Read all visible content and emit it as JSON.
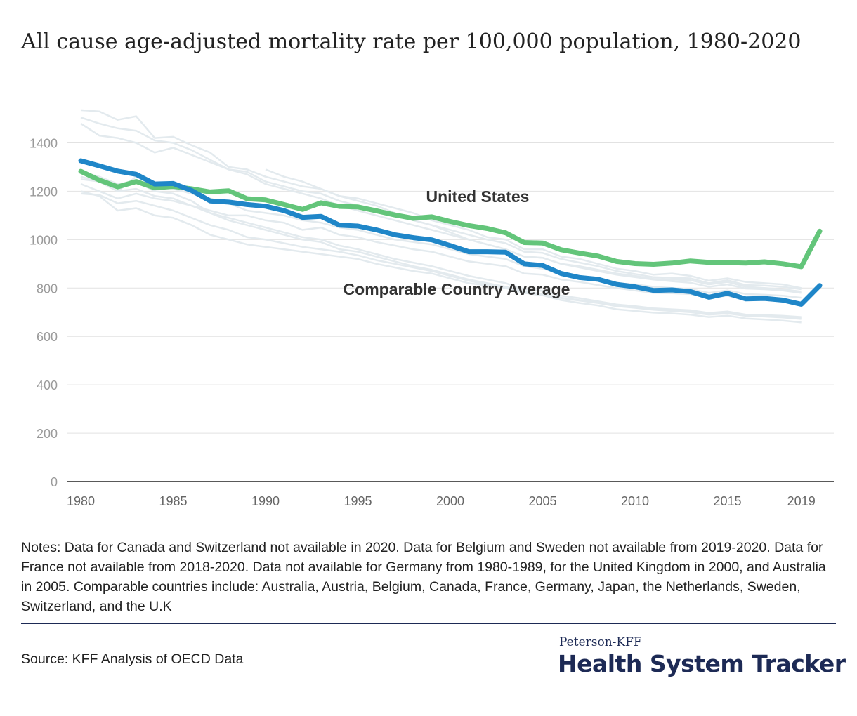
{
  "header": {
    "title": "All cause age-adjusted mortality rate per 100,000 population, 1980-2020"
  },
  "notes": "Notes: Data for Canada and Switzerland not available in 2020. Data for Belgium and Sweden not available from 2019-2020. Data for France not available from 2018-2020. Data not available for Germany from 1980-1989, for the United Kingdom in 2000, and Australia in 2005.  Comparable countries include: Australia, Austria, Belgium, Canada, France, Germany, Japan, the Netherlands, Sweden, Switzerland, and the U.K",
  "footer": {
    "source": "Source: KFF Analysis of OECD Data",
    "brand_small": "Peterson-KFF",
    "brand_large": "Health System Tracker"
  },
  "colors": {
    "us": "#63c57a",
    "avg": "#1f86c8",
    "background_lines": "#e3eaee",
    "grid": "#e2e2e2",
    "axis_text": "#9a9a9a",
    "brand": "#1d2a55"
  },
  "chart_data": {
    "type": "line",
    "title": "All cause age-adjusted mortality rate per 100,000 population, 1980-2020",
    "xlabel": "",
    "ylabel": "",
    "xlim": [
      1980,
      2020
    ],
    "ylim": [
      0,
      1500
    ],
    "yticks": [
      0,
      200,
      400,
      600,
      800,
      1000,
      1200,
      1400
    ],
    "xticks": [
      1980,
      1985,
      1990,
      1995,
      2000,
      2005,
      2010,
      2015,
      2019
    ],
    "grid": true,
    "x": [
      1980,
      1981,
      1982,
      1983,
      1984,
      1985,
      1986,
      1987,
      1988,
      1989,
      1990,
      1991,
      1992,
      1993,
      1994,
      1995,
      1996,
      1997,
      1998,
      1999,
      2000,
      2001,
      2002,
      2003,
      2004,
      2005,
      2006,
      2007,
      2008,
      2009,
      2010,
      2011,
      2012,
      2013,
      2014,
      2015,
      2016,
      2017,
      2018,
      2019,
      2020
    ],
    "series": [
      {
        "name": "United States",
        "values": [
          1282,
          1246,
          1218,
          1240,
          1214,
          1220,
          1210,
          1197,
          1202,
          1169,
          1164,
          1145,
          1125,
          1152,
          1137,
          1135,
          1119,
          1102,
          1088,
          1094,
          1075,
          1058,
          1046,
          1028,
          988,
          986,
          958,
          944,
          932,
          910,
          901,
          898,
          903,
          912,
          906,
          905,
          903,
          908,
          900,
          888,
          1035
        ]
      },
      {
        "name": "Comparable Country Average",
        "values": [
          1326,
          1305,
          1283,
          1270,
          1230,
          1232,
          1203,
          1160,
          1155,
          1145,
          1138,
          1120,
          1092,
          1096,
          1060,
          1056,
          1040,
          1020,
          1008,
          999,
          975,
          950,
          950,
          948,
          900,
          893,
          860,
          843,
          836,
          815,
          805,
          790,
          792,
          785,
          762,
          778,
          755,
          757,
          750,
          733,
          810
        ]
      }
    ],
    "background_series": [
      {
        "values": [
          1535,
          1530,
          1495,
          1510,
          1420,
          1425,
          1390,
          1360,
          1300,
          1290,
          1260,
          1240,
          1220,
          1210,
          1180,
          1170,
          1150,
          1130,
          1110,
          1080,
          1060,
          1040,
          1010,
          1000,
          960,
          960,
          930,
          920,
          900,
          880,
          870,
          855,
          860,
          850,
          830,
          840,
          825,
          820,
          815,
          800
        ]
      },
      {
        "values": [
          1505,
          1480,
          1460,
          1450,
          1410,
          1400,
          1370,
          1330,
          1290,
          1280,
          1240,
          1220,
          1200,
          1190,
          1160,
          1140,
          1120,
          1100,
          1080,
          1060,
          1040,
          1020,
          1000,
          985,
          950,
          945,
          920,
          905,
          890,
          870,
          858,
          845,
          842,
          840,
          820,
          832,
          812,
          810,
          805,
          795
        ]
      },
      {
        "values": [
          1480,
          1430,
          1420,
          1400,
          1360,
          1380,
          1350,
          1320,
          1290,
          1270,
          1230,
          1210,
          1190,
          1170,
          1140,
          1120,
          1100,
          1080,
          1060,
          1040,
          1020,
          1000,
          980,
          960,
          930,
          925,
          900,
          890,
          875,
          860,
          850,
          838,
          835,
          832,
          815,
          825,
          805,
          800,
          795,
          785
        ]
      },
      {
        "values": [
          1250,
          1240,
          1200,
          1260,
          1230,
          1210,
          1190,
          1170,
          1150,
          1120,
          1110,
          1100,
          1080,
          1070,
          1050,
          1040,
          1020,
          1000,
          990,
          980,
          960,
          940,
          930,
          920,
          890,
          880,
          860,
          850,
          840,
          820,
          815,
          805,
          800,
          795,
          780,
          790,
          775,
          772,
          768,
          760
        ]
      },
      {
        "values": [
          1230,
          1200,
          1170,
          1190,
          1170,
          1160,
          1140,
          1120,
          1100,
          1100,
          1080,
          1070,
          1040,
          1050,
          1020,
          1010,
          990,
          975,
          960,
          950,
          930,
          910,
          900,
          890,
          860,
          855,
          835,
          825,
          812,
          800,
          790,
          780,
          778,
          775,
          760,
          768,
          752,
          750,
          745,
          735
        ]
      },
      {
        "values": [
          1200,
          1180,
          1120,
          1130,
          1100,
          1090,
          1060,
          1020,
          1000,
          980,
          970,
          960,
          950,
          940,
          930,
          920,
          900,
          885,
          870,
          860,
          840,
          820,
          810,
          800,
          780,
          775,
          760,
          750,
          740,
          725,
          720,
          712,
          710,
          705,
          695,
          700,
          690,
          688,
          685,
          680
        ]
      },
      {
        "values": [
          1190,
          1185,
          1150,
          1160,
          1140,
          1120,
          1090,
          1060,
          1040,
          1010,
          1000,
          985,
          970,
          960,
          950,
          935,
          915,
          900,
          885,
          870,
          850,
          830,
          815,
          805,
          785,
          775,
          758,
          748,
          738,
          725,
          718,
          710,
          705,
          700,
          690,
          695,
          685,
          682,
          678,
          672
        ]
      },
      {
        "values": [
          1280,
          1260,
          1230,
          1240,
          1200,
          1190,
          1160,
          1110,
          1080,
          1060,
          1040,
          1020,
          1000,
          990,
          960,
          950,
          930,
          910,
          890,
          875,
          855,
          835,
          820,
          805,
          780,
          770,
          750,
          738,
          728,
          712,
          705,
          698,
          695,
          690,
          680,
          686,
          674,
          670,
          665,
          658
        ]
      },
      {
        "values": [
          null,
          null,
          null,
          null,
          null,
          null,
          null,
          null,
          null,
          null,
          1290,
          1260,
          1240,
          1210,
          1180,
          1160,
          1140,
          1110,
          1080,
          1060,
          1030,
          1000,
          980,
          960,
          930,
          925,
          900,
          885,
          870,
          855,
          845,
          835,
          828,
          822,
          805,
          815,
          798,
          795,
          790,
          780
        ]
      },
      {
        "values": [
          1260,
          1240,
          1200,
          1210,
          1180,
          1170,
          1140,
          1110,
          1090,
          1070,
          1050,
          1030,
          1010,
          1000,
          975,
          960,
          940,
          920,
          905,
          890,
          870,
          850,
          835,
          820,
          795,
          788,
          768,
          758,
          745,
          732,
          725,
          716,
          712,
          708,
          697,
          703,
          690,
          687,
          684,
          676
        ]
      }
    ]
  },
  "labels": {
    "us": "United States",
    "avg": "Comparable Country Average"
  }
}
